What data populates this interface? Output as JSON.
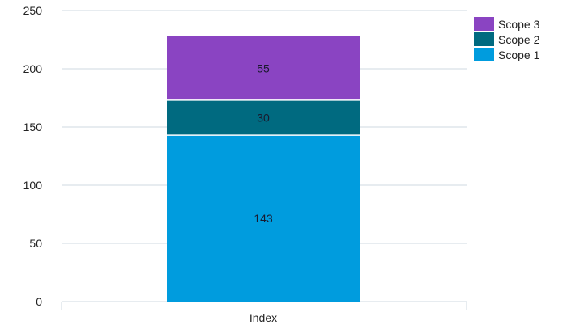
{
  "chart_data": {
    "type": "bar",
    "stacked": true,
    "title": "",
    "xlabel": "",
    "ylabel": "",
    "categories": [
      "Index"
    ],
    "ylim": [
      0,
      250
    ],
    "yticks": [
      0,
      50,
      100,
      150,
      200,
      250
    ],
    "grid": true,
    "legend_position": "top-right",
    "series": [
      {
        "name": "Scope 1",
        "values": [
          143
        ],
        "color": "#009cde",
        "label": "143"
      },
      {
        "name": "Scope 2",
        "values": [
          30
        ],
        "color": "#006a80",
        "label": "30"
      },
      {
        "name": "Scope 3",
        "values": [
          55
        ],
        "color": "#8a44c2",
        "label": "55"
      }
    ]
  },
  "legend": {
    "items": [
      {
        "name": "Scope 3",
        "color": "#8a44c2"
      },
      {
        "name": "Scope 2",
        "color": "#006a80"
      },
      {
        "name": "Scope 1",
        "color": "#009cde"
      }
    ]
  }
}
